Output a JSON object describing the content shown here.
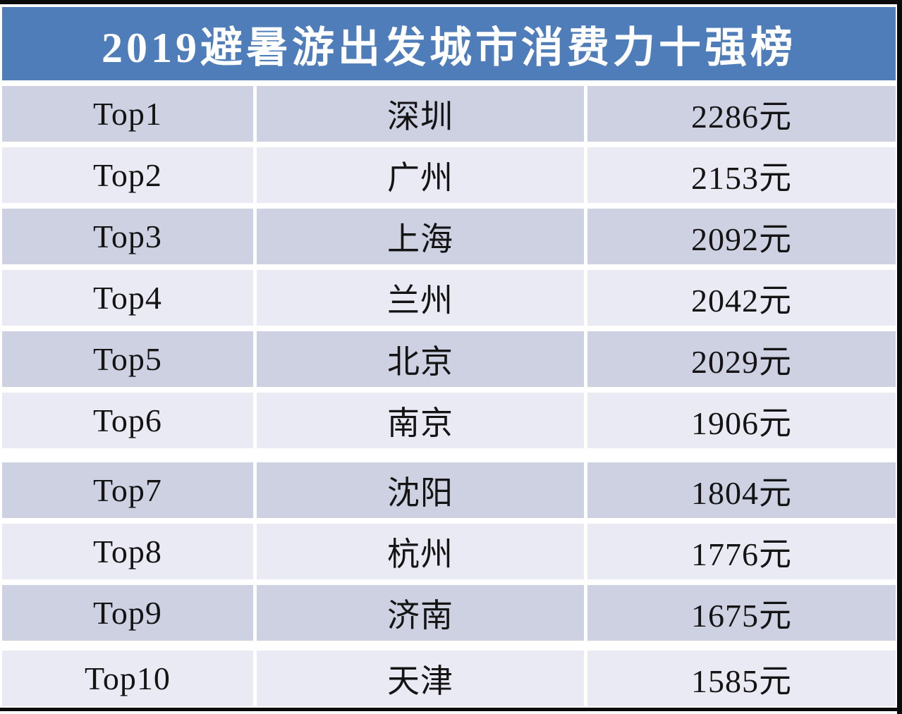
{
  "title": "2019避暑游出发城市消费力十强榜",
  "rows": [
    {
      "rank": "Top1",
      "city": "深圳",
      "value": "2286元"
    },
    {
      "rank": "Top2",
      "city": "广州",
      "value": "2153元"
    },
    {
      "rank": "Top3",
      "city": "上海",
      "value": "2092元"
    },
    {
      "rank": "Top4",
      "city": "兰州",
      "value": "2042元"
    },
    {
      "rank": "Top5",
      "city": "北京",
      "value": "2029元"
    },
    {
      "rank": "Top6",
      "city": "南京",
      "value": "1906元"
    },
    {
      "rank": "Top7",
      "city": "沈阳",
      "value": "1804元"
    },
    {
      "rank": "Top8",
      "city": "杭州",
      "value": "1776元"
    },
    {
      "rank": "Top9",
      "city": "济南",
      "value": "1675元"
    },
    {
      "rank": "Top10",
      "city": "天津",
      "value": "1585元"
    }
  ],
  "colors": {
    "header_bg": "#4e7db9",
    "header_text": "#ffffff",
    "row_odd_bg": "#cdd1e2",
    "row_even_bg": "#e9eaf3",
    "text": "#141414",
    "frame": "#0a0a0a"
  },
  "chart_data": {
    "type": "table",
    "title": "2019避暑游出发城市消费力十强榜",
    "ranks": [
      "Top1",
      "Top2",
      "Top3",
      "Top4",
      "Top5",
      "Top6",
      "Top7",
      "Top8",
      "Top9",
      "Top10"
    ],
    "categories": [
      "深圳",
      "广州",
      "上海",
      "兰州",
      "北京",
      "南京",
      "沈阳",
      "杭州",
      "济南",
      "天津"
    ],
    "values": [
      2286,
      2153,
      2092,
      2042,
      2029,
      1906,
      1804,
      1776,
      1675,
      1585
    ],
    "unit": "元",
    "layout": "3-column ranking table, banded rows, no column headers"
  }
}
